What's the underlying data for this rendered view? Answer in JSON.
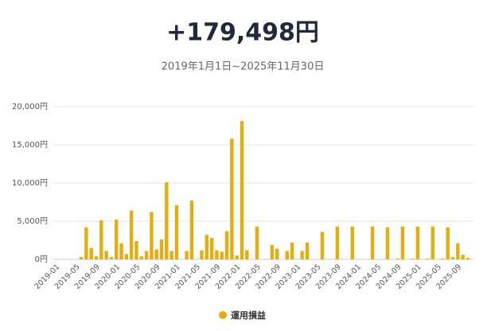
{
  "chart_data": {
    "type": "bar",
    "title": "+179,498円",
    "subtitle": "2019年1月1日~2025年11月30日",
    "categories": [
      "2019-01",
      null,
      null,
      null,
      "2019-05",
      null,
      null,
      null,
      "2019-09",
      null,
      null,
      null,
      "2020-01",
      null,
      null,
      null,
      "2020-05",
      null,
      null,
      null,
      "2020-09",
      null,
      null,
      null,
      "2021-01",
      null,
      null,
      null,
      "2021-05",
      null,
      null,
      null,
      "2021-09",
      null,
      null,
      null,
      "2022-01",
      null,
      null,
      null,
      "2022-05",
      null,
      null,
      null,
      "2022-09",
      null,
      null,
      null,
      "2023-01",
      null,
      null,
      null,
      "2023-05",
      null,
      null,
      null,
      "2023-09",
      null,
      null,
      null,
      "2024-01",
      null,
      null,
      null,
      "2024-05",
      null,
      null,
      null,
      "2024-09",
      null,
      null,
      null,
      "2025-01",
      null,
      null,
      null,
      "2025-05",
      null,
      null,
      null,
      "2025-09",
      null,
      null
    ],
    "series": [
      {
        "name": "運用損益",
        "color": "#e6ad0e",
        "values": [
          0,
          0,
          0,
          0,
          0,
          300,
          4200,
          1500,
          400,
          5100,
          1100,
          300,
          5200,
          2100,
          700,
          6400,
          2400,
          400,
          1100,
          6200,
          1300,
          2600,
          10100,
          1100,
          7100,
          0,
          1100,
          7700,
          0,
          1200,
          3200,
          2800,
          1200,
          1000,
          3700,
          15800,
          500,
          18100,
          1200,
          0,
          4300,
          0,
          0,
          1900,
          1400,
          0,
          1100,
          2200,
          0,
          1100,
          2200,
          0,
          0,
          3600,
          0,
          0,
          4300,
          0,
          0,
          4300,
          0,
          0,
          0,
          4300,
          0,
          0,
          4200,
          0,
          100,
          4300,
          0,
          100,
          4300,
          0,
          100,
          4300,
          0,
          100,
          4200,
          300,
          2100,
          600,
          200
        ]
      }
    ],
    "ylim": [
      0,
      20000
    ],
    "yticks": [
      {
        "value": 0,
        "label": "0円"
      },
      {
        "value": 5000,
        "label": "5,000円"
      },
      {
        "value": 10000,
        "label": "10,000円"
      },
      {
        "value": 15000,
        "label": "15,000円"
      },
      {
        "value": 20000,
        "label": "20,000円"
      }
    ],
    "grid": true,
    "legend": "bottom"
  }
}
